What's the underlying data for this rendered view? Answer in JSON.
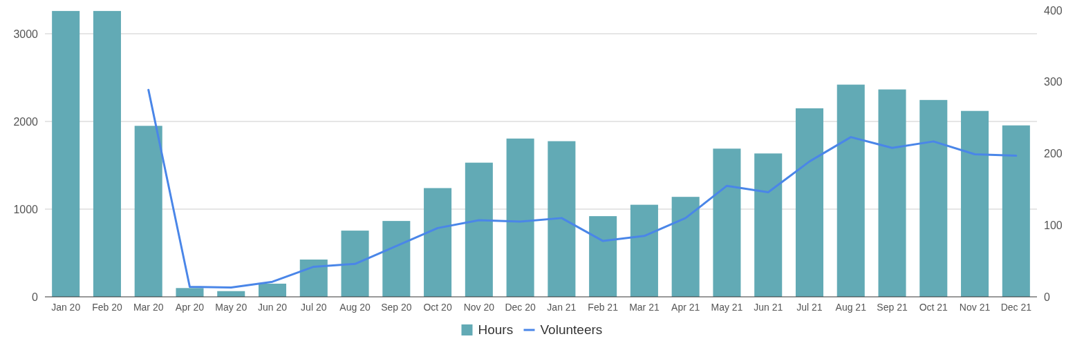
{
  "chart_data": {
    "type": "bar",
    "categories": [
      "Jan 20",
      "Feb 20",
      "Mar 20",
      "Apr 20",
      "May 20",
      "Jun 20",
      "Jul 20",
      "Aug 20",
      "Sep 20",
      "Oct 20",
      "Nov 20",
      "Dec 20",
      "Jan 21",
      "Feb 21",
      "Mar 21",
      "Apr 21",
      "May 21",
      "Jun 21",
      "Jul 21",
      "Aug 21",
      "Sep 21",
      "Oct 21",
      "Nov 21",
      "Dec 21"
    ],
    "series": [
      {
        "name": "Hours",
        "color": "#62aab5",
        "values": [
          3260,
          3260,
          1950,
          100,
          65,
          150,
          425,
          755,
          865,
          1240,
          1530,
          1805,
          1775,
          920,
          1050,
          1140,
          1690,
          1635,
          2150,
          2420,
          2365,
          2245,
          2120,
          1955
        ]
      },
      {
        "name": "Volunteers",
        "type": "line",
        "axis": "y2",
        "color": "#4a86e8",
        "values": [
          null,
          null,
          289,
          14,
          13,
          21,
          42,
          46,
          71,
          96,
          107,
          105,
          110,
          78,
          85,
          110,
          155,
          146,
          189,
          223,
          208,
          217,
          199,
          197
        ]
      }
    ],
    "ylim": [
      0,
      3267
    ],
    "yticks": [
      0,
      1000,
      2000,
      3000
    ],
    "y2lim": [
      0,
      400
    ],
    "y2ticks": [
      0,
      100,
      200,
      300,
      400
    ],
    "grid": "y",
    "legend": "bottom",
    "marker": "none",
    "line_style": "solid"
  }
}
